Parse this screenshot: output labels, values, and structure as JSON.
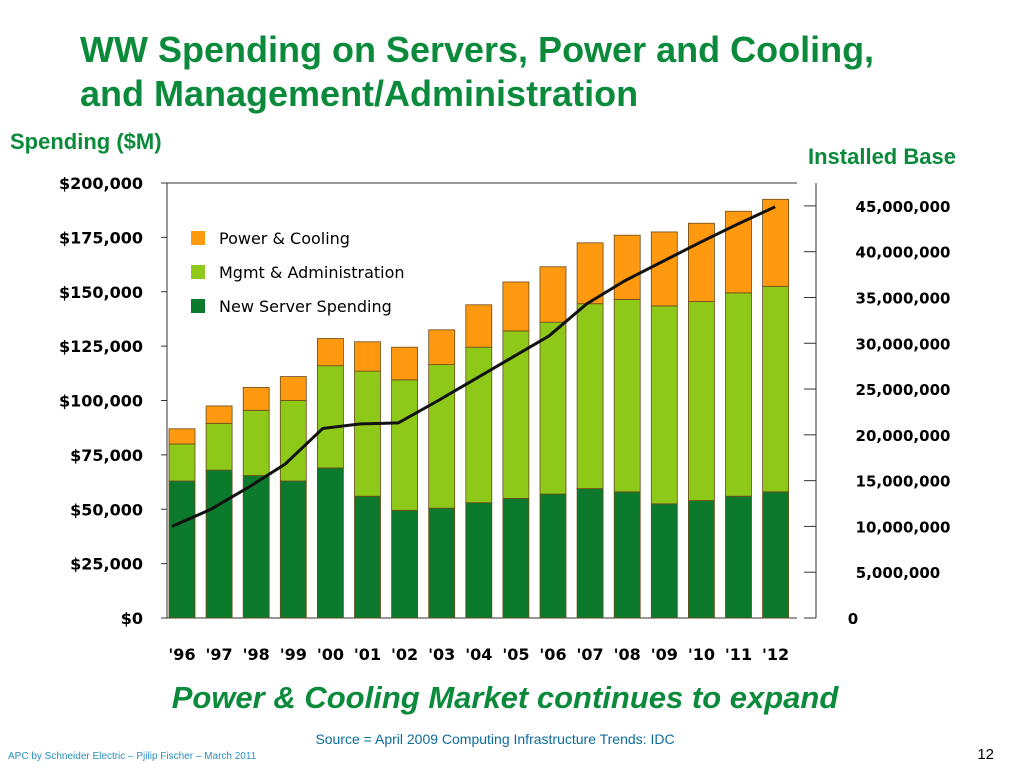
{
  "slide": {
    "title_line1": "WW Spending on Servers, Power and Cooling,",
    "title_line2": "and Management/Administration",
    "left_axis_label": "Spending ($M)",
    "right_axis_label": "Installed Base",
    "tagline": "Power & Cooling Market continues to expand",
    "source": "Source  = April 2009 Computing Infrastructure Trends: IDC",
    "footer": "APC by Schneider Electric – Pjilip Fischer – March 2011",
    "page_number": "12"
  },
  "colors": {
    "title_green": "#0a8a3a",
    "power_cooling": "#ff9910",
    "mgmt_admin": "#8ec91a",
    "new_server": "#0b7a2c",
    "installed_base_line": "#111111"
  },
  "chart_data": {
    "type": "bar",
    "stacked": true,
    "categories": [
      "'96",
      "'97",
      "'98",
      "'99",
      "'00",
      "'01",
      "'02",
      "'03",
      "'04",
      "'05",
      "'06",
      "'07",
      "'08",
      "'09",
      "'10",
      "'11",
      "'12"
    ],
    "ylabel": "Spending ($M)",
    "ylim": [
      0,
      200000
    ],
    "yticks": [
      "$0",
      "$25,000",
      "$50,000",
      "$75,000",
      "$100,000",
      "$125,000",
      "$150,000",
      "$175,000",
      "$200,000"
    ],
    "series": [
      {
        "name": "New Server Spending",
        "values": [
          63000,
          68000,
          65500,
          63000,
          69000,
          56000,
          49500,
          50500,
          53000,
          55000,
          57000,
          59500,
          58000,
          52500,
          54000,
          56000,
          58000
        ]
      },
      {
        "name": "Mgmt & Administration",
        "values": [
          17000,
          21500,
          30000,
          37000,
          47000,
          57500,
          60000,
          66000,
          71500,
          77000,
          79000,
          85000,
          88500,
          91000,
          91500,
          93500,
          94500
        ]
      },
      {
        "name": "Power & Cooling",
        "values": [
          7000,
          8000,
          10500,
          11000,
          12500,
          13500,
          15000,
          16000,
          19500,
          22500,
          25500,
          28000,
          29500,
          34000,
          36000,
          37500,
          40000
        ]
      }
    ],
    "legend": [
      "Power & Cooling",
      "Mgmt & Administration",
      "New Server Spending"
    ],
    "legend_position": "top-left",
    "line_series": {
      "name": "Installed Base",
      "axis": "right",
      "ylim": [
        0,
        47500000
      ],
      "yticks": [
        "0",
        "5,000,000",
        "10,000,000",
        "15,000,000",
        "20,000,000",
        "25,000,000",
        "30,000,000",
        "35,000,000",
        "40,000,000",
        "45,000,000"
      ],
      "values": [
        10000000,
        11800000,
        14200000,
        16800000,
        20700000,
        21200000,
        21300000,
        23600000,
        26000000,
        28400000,
        30800000,
        34300000,
        36800000,
        38900000,
        41000000,
        43000000,
        44900000
      ]
    }
  }
}
